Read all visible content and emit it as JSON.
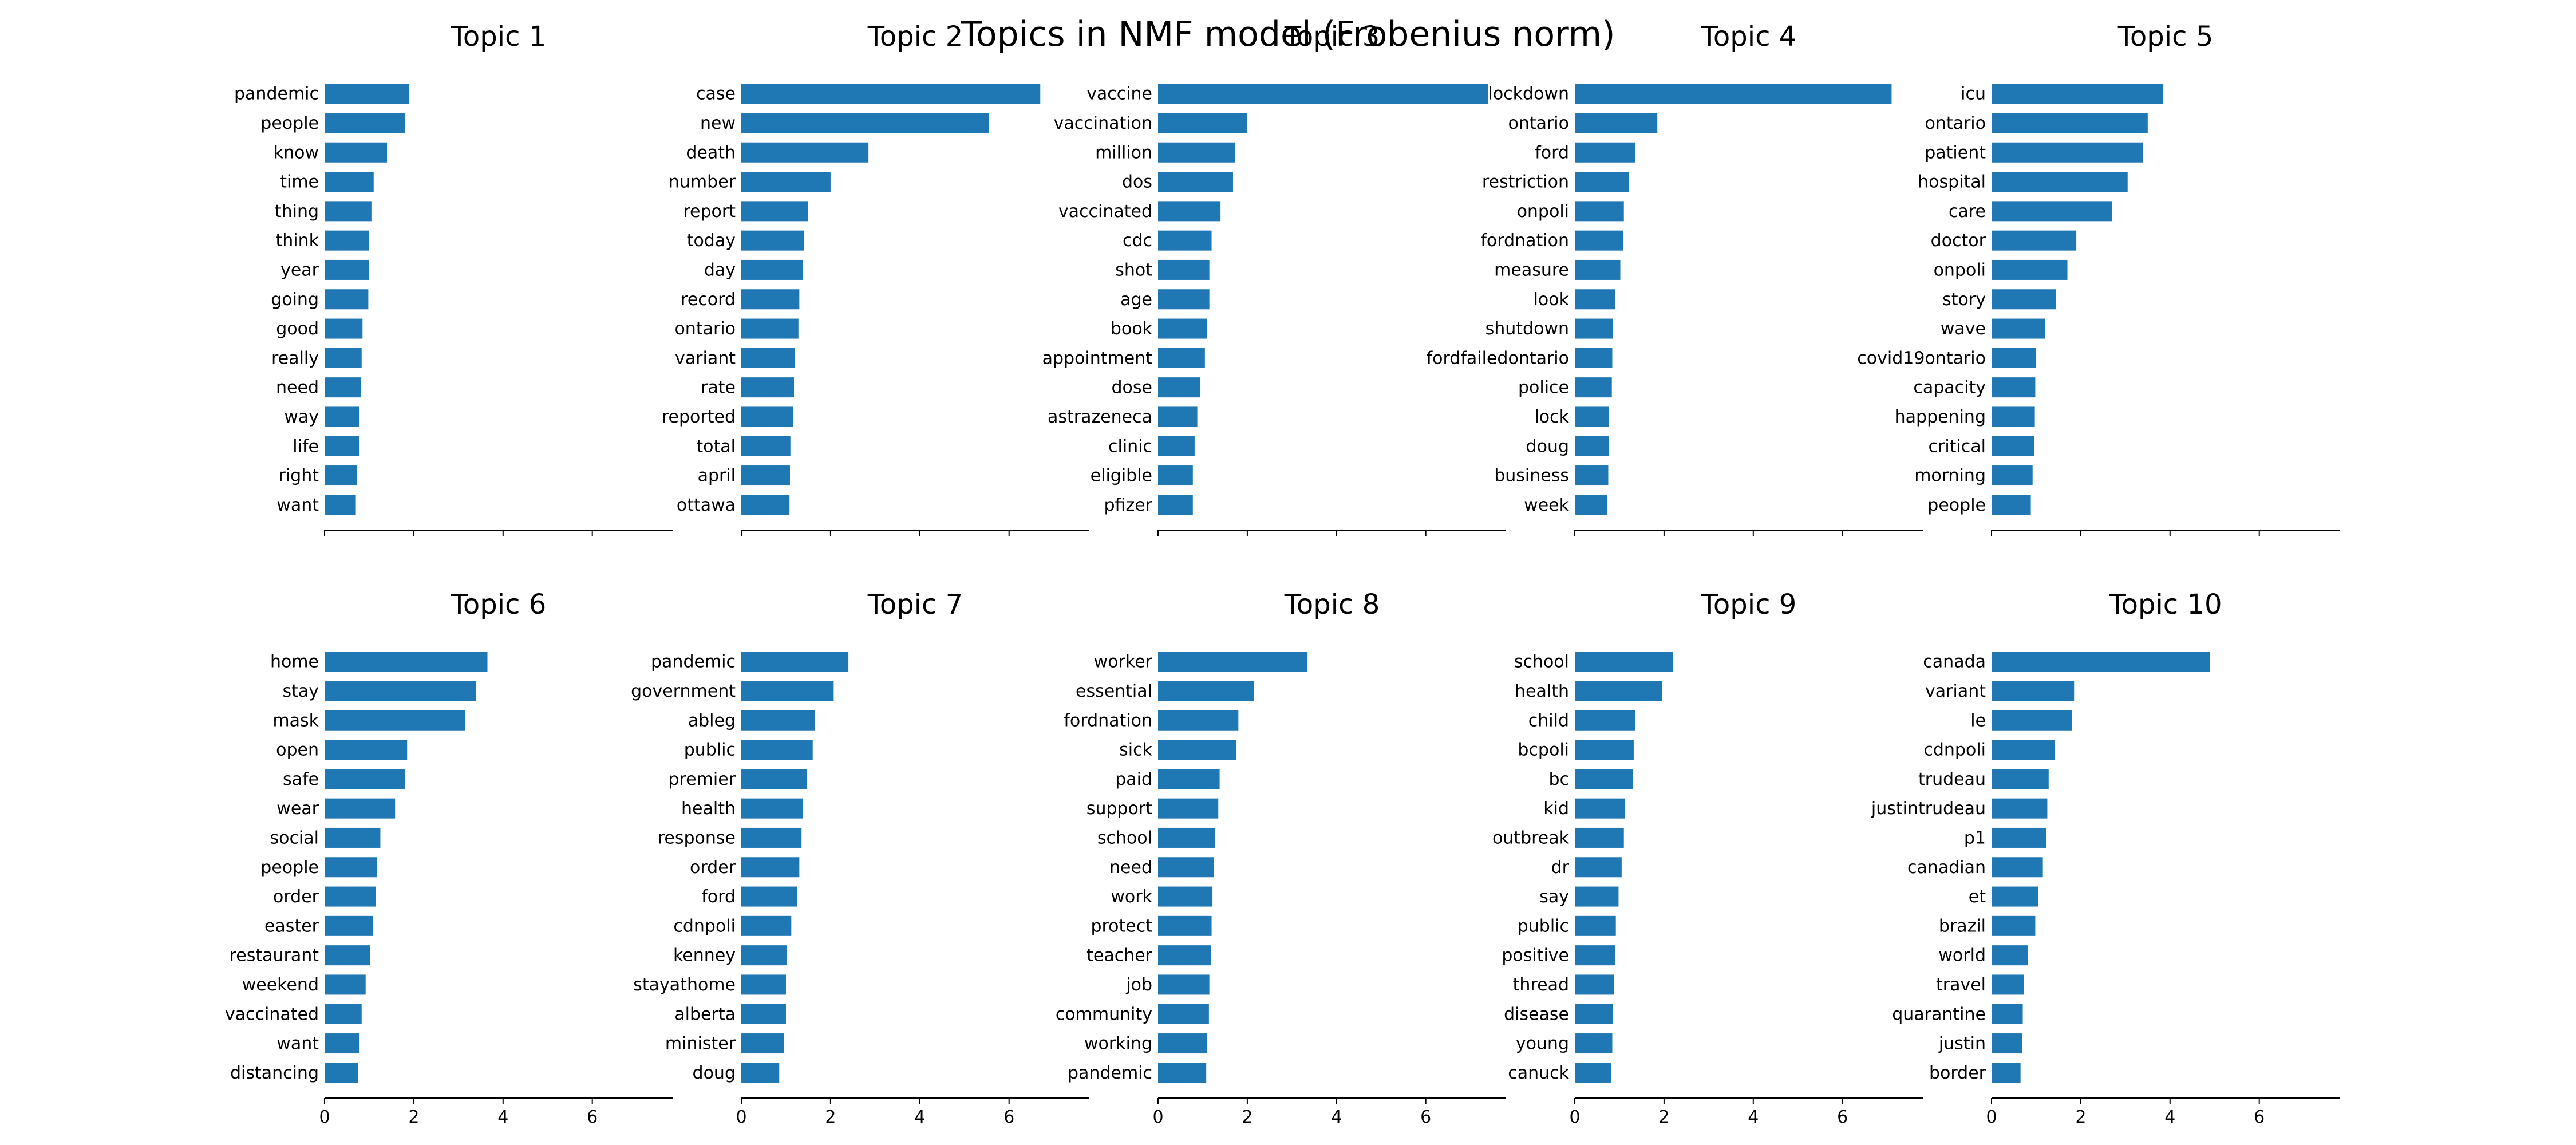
{
  "figure": {
    "title": "Topics in NMF model (Frobenius norm)"
  },
  "colors": {
    "bar": "#1f77b4",
    "axis": "#000000",
    "background": "#ffffff"
  },
  "chart_data": [
    {
      "type": "bar",
      "orientation": "horizontal",
      "title": "Topic 1",
      "xlim": [
        0,
        7.8
      ],
      "xticks": [
        0,
        2,
        4,
        6
      ],
      "show_tick_labels": false,
      "categories": [
        "pandemic",
        "people",
        "know",
        "time",
        "thing",
        "think",
        "year",
        "going",
        "good",
        "really",
        "need",
        "way",
        "life",
        "right",
        "want"
      ],
      "values": [
        1.9,
        1.8,
        1.4,
        1.1,
        1.05,
        1.0,
        1.0,
        0.98,
        0.85,
        0.83,
        0.82,
        0.78,
        0.77,
        0.72,
        0.7
      ]
    },
    {
      "type": "bar",
      "orientation": "horizontal",
      "title": "Topic 2",
      "xlim": [
        0,
        7.8
      ],
      "xticks": [
        0,
        2,
        4,
        6
      ],
      "show_tick_labels": false,
      "categories": [
        "case",
        "new",
        "death",
        "number",
        "report",
        "today",
        "day",
        "record",
        "ontario",
        "variant",
        "rate",
        "reported",
        "total",
        "april",
        "ottawa"
      ],
      "values": [
        6.7,
        5.55,
        2.85,
        2.0,
        1.5,
        1.4,
        1.38,
        1.3,
        1.28,
        1.2,
        1.18,
        1.16,
        1.1,
        1.09,
        1.08
      ]
    },
    {
      "type": "bar",
      "orientation": "horizontal",
      "title": "Topic 3",
      "xlim": [
        0,
        7.8
      ],
      "xticks": [
        0,
        2,
        4,
        6
      ],
      "show_tick_labels": false,
      "categories": [
        "vaccine",
        "vaccination",
        "million",
        "dos",
        "vaccinated",
        "cdc",
        "shot",
        "age",
        "book",
        "appointment",
        "dose",
        "astrazeneca",
        "clinic",
        "eligible",
        "pfizer"
      ],
      "values": [
        7.4,
        2.0,
        1.72,
        1.68,
        1.4,
        1.2,
        1.15,
        1.15,
        1.1,
        1.05,
        0.95,
        0.88,
        0.82,
        0.78,
        0.78
      ]
    },
    {
      "type": "bar",
      "orientation": "horizontal",
      "title": "Topic 4",
      "xlim": [
        0,
        7.8
      ],
      "xticks": [
        0,
        2,
        4,
        6
      ],
      "show_tick_labels": false,
      "categories": [
        "lockdown",
        "ontario",
        "ford",
        "restriction",
        "onpoli",
        "fordnation",
        "measure",
        "look",
        "shutdown",
        "fordfailedontario",
        "police",
        "lock",
        "doug",
        "business",
        "week"
      ],
      "values": [
        7.1,
        1.85,
        1.35,
        1.22,
        1.1,
        1.08,
        1.02,
        0.9,
        0.85,
        0.84,
        0.83,
        0.77,
        0.76,
        0.75,
        0.72
      ]
    },
    {
      "type": "bar",
      "orientation": "horizontal",
      "title": "Topic 5",
      "xlim": [
        0,
        7.8
      ],
      "xticks": [
        0,
        2,
        4,
        6
      ],
      "show_tick_labels": false,
      "categories": [
        "icu",
        "ontario",
        "patient",
        "hospital",
        "care",
        "doctor",
        "onpoli",
        "story",
        "wave",
        "covid19ontario",
        "capacity",
        "happening",
        "critical",
        "morning",
        "people"
      ],
      "values": [
        3.85,
        3.5,
        3.4,
        3.05,
        2.7,
        1.9,
        1.7,
        1.45,
        1.2,
        1.0,
        0.98,
        0.97,
        0.95,
        0.92,
        0.88
      ]
    },
    {
      "type": "bar",
      "orientation": "horizontal",
      "title": "Topic 6",
      "xlim": [
        0,
        7.8
      ],
      "xticks": [
        0,
        2,
        4,
        6
      ],
      "show_tick_labels": true,
      "categories": [
        "home",
        "stay",
        "mask",
        "open",
        "safe",
        "wear",
        "social",
        "people",
        "order",
        "easter",
        "restaurant",
        "weekend",
        "vaccinated",
        "want",
        "distancing"
      ],
      "values": [
        3.65,
        3.4,
        3.15,
        1.85,
        1.8,
        1.58,
        1.25,
        1.17,
        1.15,
        1.08,
        1.02,
        0.92,
        0.83,
        0.78,
        0.75
      ]
    },
    {
      "type": "bar",
      "orientation": "horizontal",
      "title": "Topic 7",
      "xlim": [
        0,
        7.8
      ],
      "xticks": [
        0,
        2,
        4,
        6
      ],
      "show_tick_labels": true,
      "categories": [
        "pandemic",
        "government",
        "ableg",
        "public",
        "premier",
        "health",
        "response",
        "order",
        "ford",
        "cdnpoli",
        "kenney",
        "stayathome",
        "alberta",
        "minister",
        "doug"
      ],
      "values": [
        2.4,
        2.07,
        1.65,
        1.6,
        1.47,
        1.38,
        1.35,
        1.3,
        1.25,
        1.12,
        1.02,
        1.0,
        1.0,
        0.95,
        0.85
      ]
    },
    {
      "type": "bar",
      "orientation": "horizontal",
      "title": "Topic 8",
      "xlim": [
        0,
        7.8
      ],
      "xticks": [
        0,
        2,
        4,
        6
      ],
      "show_tick_labels": true,
      "categories": [
        "worker",
        "essential",
        "fordnation",
        "sick",
        "paid",
        "support",
        "school",
        "need",
        "work",
        "protect",
        "teacher",
        "job",
        "community",
        "working",
        "pandemic"
      ],
      "values": [
        3.35,
        2.15,
        1.8,
        1.75,
        1.38,
        1.35,
        1.28,
        1.25,
        1.22,
        1.2,
        1.18,
        1.15,
        1.14,
        1.1,
        1.08
      ]
    },
    {
      "type": "bar",
      "orientation": "horizontal",
      "title": "Topic 9",
      "xlim": [
        0,
        7.8
      ],
      "xticks": [
        0,
        2,
        4,
        6
      ],
      "show_tick_labels": true,
      "categories": [
        "school",
        "health",
        "child",
        "bcpoli",
        "bc",
        "kid",
        "outbreak",
        "dr",
        "say",
        "public",
        "positive",
        "thread",
        "disease",
        "young",
        "canuck"
      ],
      "values": [
        2.2,
        1.95,
        1.35,
        1.32,
        1.3,
        1.12,
        1.1,
        1.05,
        0.98,
        0.92,
        0.9,
        0.88,
        0.86,
        0.84,
        0.82
      ]
    },
    {
      "type": "bar",
      "orientation": "horizontal",
      "title": "Topic 10",
      "xlim": [
        0,
        7.8
      ],
      "xticks": [
        0,
        2,
        4,
        6
      ],
      "show_tick_labels": true,
      "categories": [
        "canada",
        "variant",
        "le",
        "cdnpoli",
        "trudeau",
        "justintrudeau",
        "p1",
        "canadian",
        "et",
        "brazil",
        "world",
        "travel",
        "quarantine",
        "justin",
        "border"
      ],
      "values": [
        4.9,
        1.85,
        1.8,
        1.42,
        1.28,
        1.25,
        1.22,
        1.15,
        1.05,
        0.98,
        0.82,
        0.72,
        0.7,
        0.68,
        0.65
      ]
    }
  ]
}
